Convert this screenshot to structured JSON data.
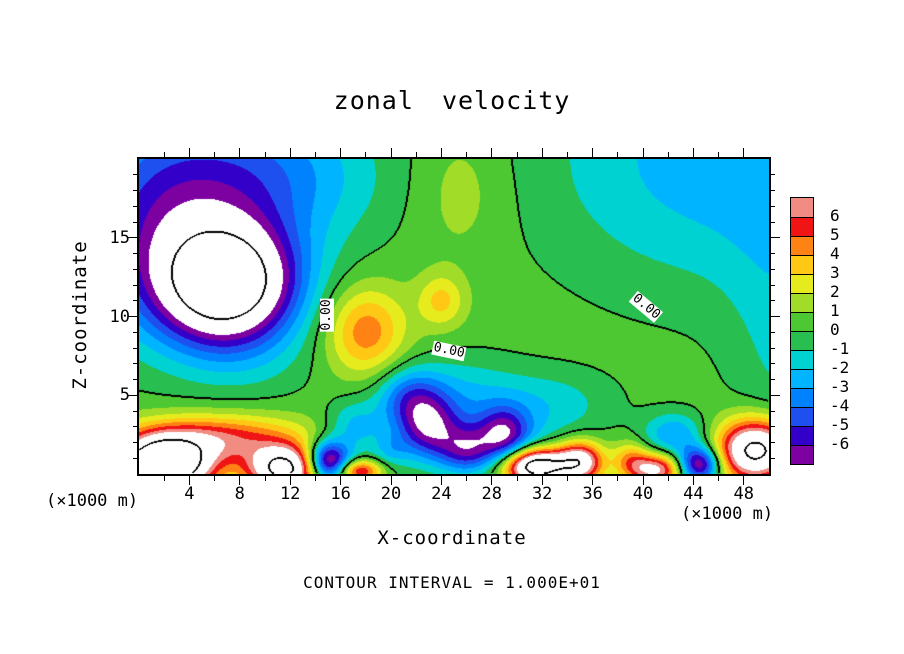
{
  "title": "zonal velocity",
  "axes": {
    "x": {
      "label": "X-coordinate",
      "units_left": "(×1000 m)",
      "units_right": "(×1000 m)",
      "ticks": [
        4,
        8,
        12,
        16,
        20,
        24,
        28,
        32,
        36,
        40,
        44,
        48
      ],
      "major_step": 4,
      "minor_step": 2
    },
    "z": {
      "label": "Z-coordinate",
      "ticks": [
        5,
        10,
        15
      ],
      "major_step": 5,
      "minor_step": 1
    }
  },
  "footer": "CONTOUR INTERVAL = 1.000E+01",
  "colorbar": {
    "labels": [
      "6",
      "5",
      "4",
      "3",
      "2",
      "1",
      "0",
      "-1",
      "-2",
      "-3",
      "-4",
      "-5",
      "-6"
    ]
  },
  "chart_data": {
    "type": "heatmap",
    "title": "zonal velocity",
    "xlabel": "X-coordinate (×1000 m)",
    "ylabel": "Z-coordinate (×1000 m)",
    "x_range": [
      0,
      50
    ],
    "z_range": [
      0,
      20
    ],
    "contour_interval": 10,
    "contour_line_levels": [
      -10,
      0,
      10
    ],
    "fill_min": -7,
    "fill_step": 1,
    "fill_colors": [
      "#7d00a0",
      "#3200c8",
      "#1e50f0",
      "#0082ff",
      "#00b4ff",
      "#00d2d2",
      "#28be50",
      "#4dc832",
      "#a0dc28",
      "#e6eb1e",
      "#ffc814",
      "#ff8214",
      "#f01414",
      "#f08c82"
    ],
    "out_of_range_color": "#ffffff",
    "contour_labels": [
      {
        "text": "0.00",
        "x": 14.9,
        "z": 10.1,
        "rot": -90
      },
      {
        "text": "0.00",
        "x": 24.6,
        "z": 7.8,
        "rot": 12
      },
      {
        "text": "0.00",
        "x": 40.2,
        "z": 10.6,
        "rot": 40
      }
    ],
    "field_model": {
      "base": 0.6,
      "gaussians": [
        [
          -12,
          7,
          12,
          3.8,
          2.6
        ],
        [
          -5.5,
          2,
          16,
          5.5,
          5.0
        ],
        [
          -3.5,
          11,
          19,
          6.0,
          3.5
        ],
        [
          -0.9,
          9,
          7,
          4.0,
          2.0
        ],
        [
          -3.2,
          46,
          20,
          10.0,
          6.0
        ],
        [
          -1.5,
          51,
          8,
          3.0,
          8.0
        ],
        [
          4.2,
          18,
          9,
          2.2,
          2.0
        ],
        [
          2.8,
          24,
          11,
          1.3,
          1.2
        ],
        [
          1.2,
          25.5,
          18,
          2.5,
          3.0
        ],
        [
          -2.5,
          25,
          5,
          4.0,
          1.8
        ],
        [
          -1.8,
          33,
          4.5,
          3.5,
          1.5
        ],
        [
          -3.5,
          21.5,
          4.8,
          1.8,
          1.3
        ],
        [
          -2.5,
          17,
          3,
          1.5,
          1.2
        ],
        [
          5.5,
          6,
          2.2,
          5.0,
          1.1
        ],
        [
          14,
          2,
          0.5,
          2.5,
          1.2
        ],
        [
          10,
          11.5,
          0.3,
          2.0,
          1.0
        ],
        [
          6,
          17.5,
          0.2,
          1.2,
          0.5
        ],
        [
          12,
          31.5,
          0.5,
          1.8,
          0.8
        ],
        [
          8,
          35,
          0.8,
          1.3,
          0.9
        ],
        [
          3,
          39,
          1.0,
          1.0,
          0.8
        ],
        [
          7,
          41,
          0.3,
          1.5,
          0.7
        ],
        [
          11,
          49,
          1.5,
          2.2,
          1.4
        ],
        [
          -9,
          15,
          0.8,
          1.2,
          0.9
        ],
        [
          -4.5,
          23,
          3,
          1.6,
          1.3
        ],
        [
          -4,
          26,
          1.5,
          1.5,
          1.0
        ],
        [
          -5,
          29,
          2.5,
          1.4,
          1.2
        ],
        [
          -2.5,
          26,
          2,
          5.0,
          1.5
        ],
        [
          -1.5,
          20,
          1.5,
          1.0,
          0.7
        ],
        [
          -3.5,
          42.5,
          2.5,
          1.8,
          1.0
        ],
        [
          -8,
          44.5,
          0.6,
          1.2,
          0.8
        ]
      ]
    }
  }
}
